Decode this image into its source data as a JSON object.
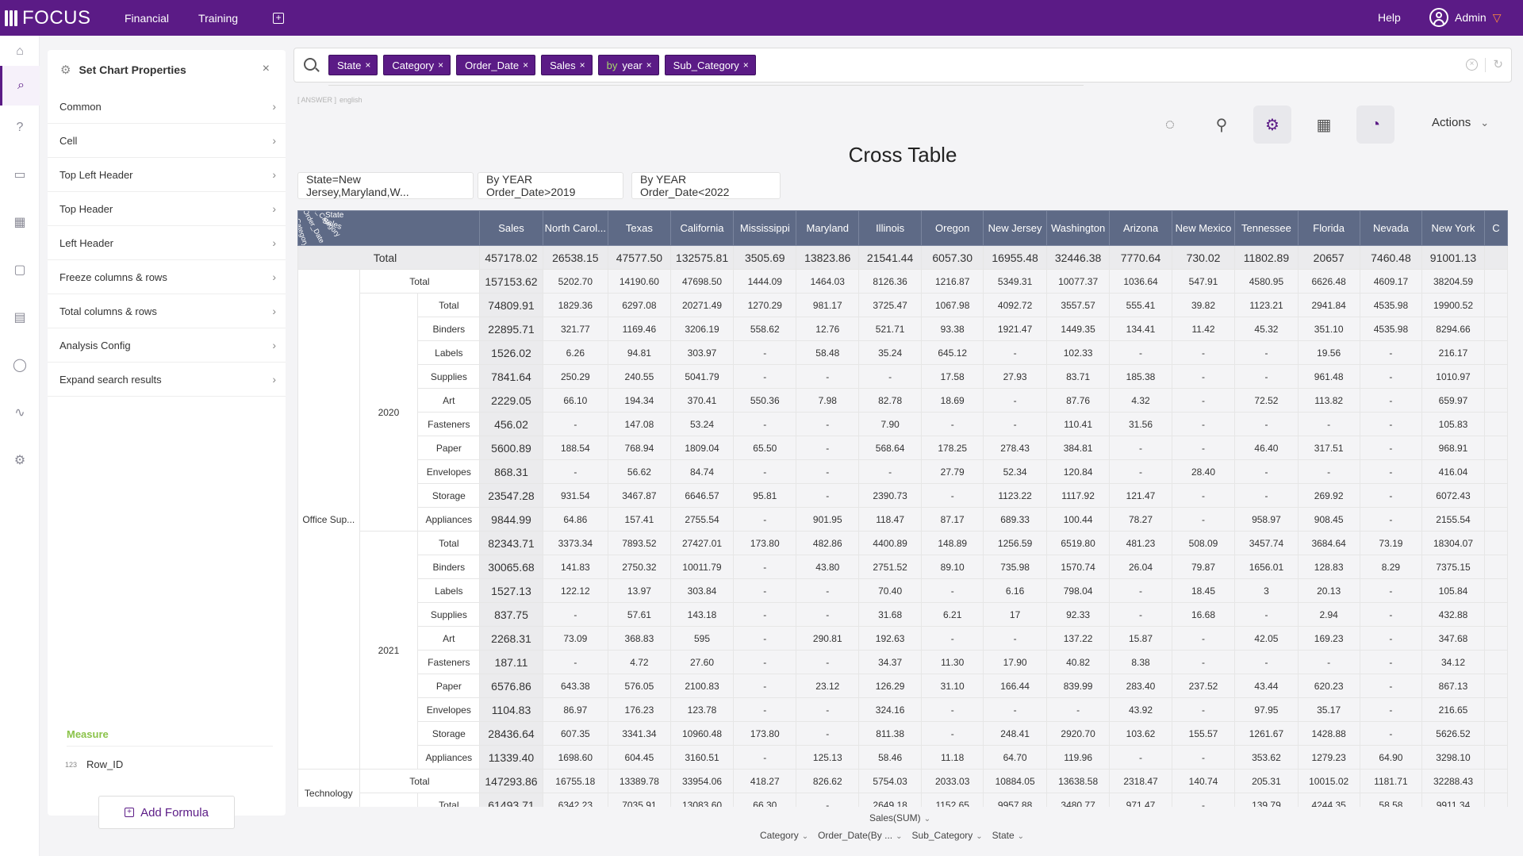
{
  "topbar": {
    "logo": "FOCUS",
    "nav": [
      "Financial",
      "Training"
    ],
    "help": "Help",
    "user": "Admin"
  },
  "rail_icons": [
    "home-icon",
    "search-icon",
    "question-icon",
    "presentation-icon",
    "table-icon",
    "folder-icon",
    "clipboard-icon",
    "user-icon",
    "pulse-icon",
    "gear-icon"
  ],
  "props": {
    "title": "Set Chart Properties",
    "items": [
      "Common",
      "Cell",
      "Top Left Header",
      "Top Header",
      "Left Header",
      "Freeze columns & rows",
      "Total columns & rows",
      "Analysis Config",
      "Expand search results"
    ],
    "measure_title": "Measure",
    "measure_type": "123",
    "measure_item": "Row_ID",
    "add_formula": "Add Formula"
  },
  "search": {
    "tokens": [
      {
        "kw": "",
        "label": "State"
      },
      {
        "kw": "",
        "label": "Category"
      },
      {
        "kw": "",
        "label": "Order_Date"
      },
      {
        "kw": "",
        "label": "Sales"
      },
      {
        "kw": "by",
        "label": "year"
      },
      {
        "kw": "",
        "label": "Sub_Category"
      }
    ],
    "answer_tag": "[ ANSWER ]",
    "answer_lang": "english"
  },
  "toolbar": {
    "actions": "Actions"
  },
  "chart": {
    "title": "Cross Table",
    "filters": [
      "State=New Jersey,Maryland,W...",
      "By YEAR Order_Date>2019",
      "By YEAR Order_Date<2022"
    ],
    "corner_labels": [
      "State",
      "Sales",
      "Sub_Category",
      "Order_Date",
      "Category"
    ],
    "columns": [
      "Sales",
      "North Carol...",
      "Texas",
      "California",
      "Mississippi",
      "Maryland",
      "Illinois",
      "Oregon",
      "New Jersey",
      "Washington",
      "Arizona",
      "New Mexico",
      "Tennessee",
      "Florida",
      "Nevada",
      "New York",
      "C"
    ],
    "grand_total": {
      "label": "Total",
      "values": [
        "457178.02",
        "26538.15",
        "47577.50",
        "132575.81",
        "3505.69",
        "13823.86",
        "21541.44",
        "6057.30",
        "16955.48",
        "32446.38",
        "7770.64",
        "730.02",
        "11802.89",
        "20657",
        "7460.48",
        "91001.13",
        ""
      ]
    },
    "categories": [
      {
        "name": "Office Sup...",
        "total_label": "Total",
        "total": [
          "157153.62",
          "5202.70",
          "14190.60",
          "47698.50",
          "1444.09",
          "1464.03",
          "8126.36",
          "1216.87",
          "5349.31",
          "10077.37",
          "1036.64",
          "547.91",
          "4580.95",
          "6626.48",
          "4609.17",
          "38204.59",
          ""
        ],
        "years": [
          {
            "year": "2020",
            "rows": [
              {
                "sub": "Total",
                "values": [
                  "74809.91",
                  "1829.36",
                  "6297.08",
                  "20271.49",
                  "1270.29",
                  "981.17",
                  "3725.47",
                  "1067.98",
                  "4092.72",
                  "3557.57",
                  "555.41",
                  "39.82",
                  "1123.21",
                  "2941.84",
                  "4535.98",
                  "19900.52",
                  ""
                ]
              },
              {
                "sub": "Binders",
                "values": [
                  "22895.71",
                  "321.77",
                  "1169.46",
                  "3206.19",
                  "558.62",
                  "12.76",
                  "521.71",
                  "93.38",
                  "1921.47",
                  "1449.35",
                  "134.41",
                  "11.42",
                  "45.32",
                  "351.10",
                  "4535.98",
                  "8294.66",
                  ""
                ]
              },
              {
                "sub": "Labels",
                "values": [
                  "1526.02",
                  "6.26",
                  "94.81",
                  "303.97",
                  "-",
                  "58.48",
                  "35.24",
                  "645.12",
                  "-",
                  "102.33",
                  "-",
                  "-",
                  "-",
                  "19.56",
                  "-",
                  "216.17",
                  ""
                ]
              },
              {
                "sub": "Supplies",
                "values": [
                  "7841.64",
                  "250.29",
                  "240.55",
                  "5041.79",
                  "-",
                  "-",
                  "-",
                  "17.58",
                  "27.93",
                  "83.71",
                  "185.38",
                  "-",
                  "-",
                  "961.48",
                  "-",
                  "1010.97",
                  ""
                ]
              },
              {
                "sub": "Art",
                "values": [
                  "2229.05",
                  "66.10",
                  "194.34",
                  "370.41",
                  "550.36",
                  "7.98",
                  "82.78",
                  "18.69",
                  "-",
                  "87.76",
                  "4.32",
                  "-",
                  "72.52",
                  "113.82",
                  "-",
                  "659.97",
                  ""
                ]
              },
              {
                "sub": "Fasteners",
                "values": [
                  "456.02",
                  "-",
                  "147.08",
                  "53.24",
                  "-",
                  "-",
                  "7.90",
                  "-",
                  "-",
                  "110.41",
                  "31.56",
                  "-",
                  "-",
                  "-",
                  "-",
                  "105.83",
                  ""
                ]
              },
              {
                "sub": "Paper",
                "values": [
                  "5600.89",
                  "188.54",
                  "768.94",
                  "1809.04",
                  "65.50",
                  "-",
                  "568.64",
                  "178.25",
                  "278.43",
                  "384.81",
                  "-",
                  "-",
                  "46.40",
                  "317.51",
                  "-",
                  "968.91",
                  ""
                ]
              },
              {
                "sub": "Envelopes",
                "values": [
                  "868.31",
                  "-",
                  "56.62",
                  "84.74",
                  "-",
                  "-",
                  "-",
                  "27.79",
                  "52.34",
                  "120.84",
                  "-",
                  "28.40",
                  "-",
                  "-",
                  "-",
                  "416.04",
                  ""
                ]
              },
              {
                "sub": "Storage",
                "values": [
                  "23547.28",
                  "931.54",
                  "3467.87",
                  "6646.57",
                  "95.81",
                  "-",
                  "2390.73",
                  "-",
                  "1123.22",
                  "1117.92",
                  "121.47",
                  "-",
                  "-",
                  "269.92",
                  "-",
                  "6072.43",
                  ""
                ]
              },
              {
                "sub": "Appliances",
                "values": [
                  "9844.99",
                  "64.86",
                  "157.41",
                  "2755.54",
                  "-",
                  "901.95",
                  "118.47",
                  "87.17",
                  "689.33",
                  "100.44",
                  "78.27",
                  "-",
                  "958.97",
                  "908.45",
                  "-",
                  "2155.54",
                  ""
                ]
              }
            ]
          },
          {
            "year": "2021",
            "rows": [
              {
                "sub": "Total",
                "values": [
                  "82343.71",
                  "3373.34",
                  "7893.52",
                  "27427.01",
                  "173.80",
                  "482.86",
                  "4400.89",
                  "148.89",
                  "1256.59",
                  "6519.80",
                  "481.23",
                  "508.09",
                  "3457.74",
                  "3684.64",
                  "73.19",
                  "18304.07",
                  ""
                ]
              },
              {
                "sub": "Binders",
                "values": [
                  "30065.68",
                  "141.83",
                  "2750.32",
                  "10011.79",
                  "-",
                  "43.80",
                  "2751.52",
                  "89.10",
                  "735.98",
                  "1570.74",
                  "26.04",
                  "79.87",
                  "1656.01",
                  "128.83",
                  "8.29",
                  "7375.15",
                  ""
                ]
              },
              {
                "sub": "Labels",
                "values": [
                  "1527.13",
                  "122.12",
                  "13.97",
                  "303.84",
                  "-",
                  "-",
                  "70.40",
                  "-",
                  "6.16",
                  "798.04",
                  "-",
                  "18.45",
                  "3",
                  "20.13",
                  "-",
                  "105.84",
                  ""
                ]
              },
              {
                "sub": "Supplies",
                "values": [
                  "837.75",
                  "-",
                  "57.61",
                  "143.18",
                  "-",
                  "-",
                  "31.68",
                  "6.21",
                  "17",
                  "92.33",
                  "-",
                  "16.68",
                  "-",
                  "2.94",
                  "-",
                  "432.88",
                  ""
                ]
              },
              {
                "sub": "Art",
                "values": [
                  "2268.31",
                  "73.09",
                  "368.83",
                  "595",
                  "-",
                  "290.81",
                  "192.63",
                  "-",
                  "-",
                  "137.22",
                  "15.87",
                  "-",
                  "42.05",
                  "169.23",
                  "-",
                  "347.68",
                  ""
                ]
              },
              {
                "sub": "Fasteners",
                "values": [
                  "187.11",
                  "-",
                  "4.72",
                  "27.60",
                  "-",
                  "-",
                  "34.37",
                  "11.30",
                  "17.90",
                  "40.82",
                  "8.38",
                  "-",
                  "-",
                  "-",
                  "-",
                  "34.12",
                  ""
                ]
              },
              {
                "sub": "Paper",
                "values": [
                  "6576.86",
                  "643.38",
                  "576.05",
                  "2100.83",
                  "-",
                  "23.12",
                  "126.29",
                  "31.10",
                  "166.44",
                  "839.99",
                  "283.40",
                  "237.52",
                  "43.44",
                  "620.23",
                  "-",
                  "867.13",
                  ""
                ]
              },
              {
                "sub": "Envelopes",
                "values": [
                  "1104.83",
                  "86.97",
                  "176.23",
                  "123.78",
                  "-",
                  "-",
                  "324.16",
                  "-",
                  "-",
                  "-",
                  "43.92",
                  "-",
                  "97.95",
                  "35.17",
                  "-",
                  "216.65",
                  ""
                ]
              },
              {
                "sub": "Storage",
                "values": [
                  "28436.64",
                  "607.35",
                  "3341.34",
                  "10960.48",
                  "173.80",
                  "-",
                  "811.38",
                  "-",
                  "248.41",
                  "2920.70",
                  "103.62",
                  "155.57",
                  "1261.67",
                  "1428.88",
                  "-",
                  "5626.52",
                  ""
                ]
              },
              {
                "sub": "Appliances",
                "values": [
                  "11339.40",
                  "1698.60",
                  "604.45",
                  "3160.51",
                  "-",
                  "125.13",
                  "58.46",
                  "11.18",
                  "64.70",
                  "119.96",
                  "-",
                  "-",
                  "353.62",
                  "1279.23",
                  "64.90",
                  "3298.10",
                  ""
                ]
              }
            ]
          }
        ]
      },
      {
        "name": "Technology",
        "total_label": "Total",
        "total": [
          "147293.86",
          "16755.18",
          "13389.78",
          "33954.06",
          "418.27",
          "826.62",
          "5754.03",
          "2033.03",
          "10884.05",
          "13638.58",
          "2318.47",
          "140.74",
          "205.31",
          "10015.02",
          "1181.71",
          "32288.43",
          ""
        ],
        "years": [
          {
            "year": "",
            "rows": [
              {
                "sub": "Total",
                "values": [
                  "61493.71",
                  "6342.23",
                  "7035.91",
                  "13083.60",
                  "66.30",
                  "-",
                  "2649.18",
                  "1152.65",
                  "9957.88",
                  "3480.77",
                  "971.47",
                  "-",
                  "139.79",
                  "4244.35",
                  "58.58",
                  "9911.34",
                  ""
                ]
              }
            ]
          }
        ]
      }
    ],
    "bottom_axis": "Sales(SUM)",
    "bottom_dims": [
      "Category",
      "Order_Date(By ...",
      "Sub_Category",
      "State"
    ]
  }
}
